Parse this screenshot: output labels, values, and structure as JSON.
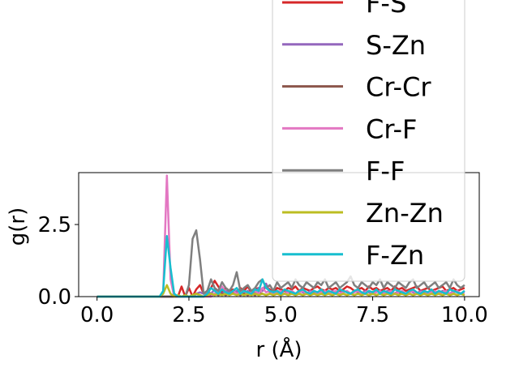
{
  "chart_data": {
    "type": "line",
    "xlabel": "r (Å)",
    "ylabel": "g(r)",
    "xlim": [
      -0.5,
      10.4
    ],
    "ylim": [
      0,
      4.3
    ],
    "x_ticks": [
      "0.0",
      "2.5",
      "5.0",
      "7.5",
      "10.0"
    ],
    "x_tick_values": [
      0,
      2.5,
      5,
      7.5,
      10
    ],
    "y_ticks": [
      "0.0",
      "2.5"
    ],
    "y_tick_values": [
      0,
      2.5
    ],
    "grid": false,
    "legend_placement": "upper right (extends above plot)",
    "x": [
      0,
      0.1,
      0.2,
      0.3,
      0.4,
      0.5,
      0.6,
      0.7,
      0.8,
      0.9,
      1.0,
      1.1,
      1.2,
      1.3,
      1.4,
      1.5,
      1.6,
      1.7,
      1.8,
      1.9,
      2.0,
      2.1,
      2.2,
      2.3,
      2.4,
      2.5,
      2.6,
      2.7,
      2.8,
      2.9,
      3.0,
      3.1,
      3.2,
      3.3,
      3.4,
      3.5,
      3.6,
      3.7,
      3.8,
      3.9,
      4.0,
      4.1,
      4.2,
      4.3,
      4.4,
      4.5,
      4.6,
      4.7,
      4.8,
      4.9,
      5.0,
      5.1,
      5.2,
      5.3,
      5.4,
      5.5,
      5.6,
      5.7,
      5.8,
      5.9,
      6.0,
      6.1,
      6.2,
      6.3,
      6.4,
      6.5,
      6.6,
      6.7,
      6.8,
      6.9,
      7.0,
      7.1,
      7.2,
      7.3,
      7.4,
      7.5,
      7.6,
      7.7,
      7.8,
      7.9,
      8.0,
      8.1,
      8.2,
      8.3,
      8.4,
      8.5,
      8.6,
      8.7,
      8.8,
      8.9,
      9.0,
      9.1,
      9.2,
      9.3,
      9.4,
      9.5,
      9.6,
      9.7,
      9.8,
      9.9,
      10.0
    ],
    "series": [
      {
        "name": "F-S",
        "color": "#d62728",
        "values": [
          0,
          0,
          0,
          0,
          0,
          0,
          0,
          0,
          0,
          0,
          0,
          0,
          0,
          0,
          0,
          0,
          0,
          0,
          0,
          0,
          0,
          0,
          0,
          0.35,
          0,
          0.3,
          0,
          0.25,
          0.4,
          0.1,
          0.2,
          0.3,
          0.55,
          0.35,
          0.15,
          0.3,
          0.2,
          0.25,
          0.1,
          0.3,
          0.2,
          0.35,
          0.15,
          0.25,
          0.3,
          0.2,
          0.35,
          0.25,
          0.15,
          0.3,
          0.25,
          0.2,
          0.3,
          0.25,
          0.35,
          0.2,
          0.3,
          0.25,
          0.2,
          0.3,
          0.35,
          0.25,
          0.2,
          0.3,
          0.25,
          0.3,
          0.2,
          0.25,
          0.35,
          0.3,
          0.2,
          0.25,
          0.3,
          0.2,
          0.35,
          0.25,
          0.3,
          0.2,
          0.25,
          0.3,
          0.2,
          0.35,
          0.25,
          0.3,
          0.2,
          0.25,
          0.3,
          0.35,
          0.2,
          0.25,
          0.3,
          0.2,
          0.25,
          0.3,
          0.35,
          0.2,
          0.25,
          0.3,
          0.2,
          0.25,
          0.3
        ]
      },
      {
        "name": "S-Zn",
        "color": "#9467bd",
        "values": [
          0,
          0,
          0,
          0,
          0,
          0,
          0,
          0,
          0,
          0,
          0,
          0,
          0,
          0,
          0,
          0,
          0,
          0,
          0,
          0,
          0,
          0,
          0,
          0,
          0,
          0,
          0,
          0.1,
          0.15,
          0.1,
          0.2,
          0.1,
          0.25,
          0.15,
          0.1,
          0.2,
          0.15,
          0.1,
          0.2,
          0.15,
          0.1,
          0.2,
          0.1,
          0.15,
          0.3,
          0.2,
          0.45,
          0.15,
          0.1,
          0.2,
          0.15,
          0.1,
          0.2,
          0.15,
          0.1,
          0.2,
          0.15,
          0.1,
          0.2,
          0.15,
          0.1,
          0.2,
          0.15,
          0.1,
          0.2,
          0.15,
          0.1,
          0.2,
          0.15,
          0.1,
          0.2,
          0.15,
          0.1,
          0.2,
          0.15,
          0.1,
          0.2,
          0.15,
          0.1,
          0.2,
          0.15,
          0.1,
          0.2,
          0.15,
          0.1,
          0.2,
          0.15,
          0.1,
          0.2,
          0.15,
          0.1,
          0.2,
          0.15,
          0.1,
          0.2,
          0.15,
          0.1,
          0.2,
          0.15,
          0.1,
          0.2
        ]
      },
      {
        "name": "Cr-Cr",
        "color": "#8c564b",
        "values": [
          0,
          0,
          0,
          0,
          0,
          0,
          0,
          0,
          0,
          0,
          0,
          0,
          0,
          0,
          0,
          0,
          0,
          0,
          0,
          0,
          0,
          0,
          0,
          0,
          0,
          0,
          0,
          0,
          0,
          0,
          0.1,
          0.05,
          0.1,
          0.05,
          0.1,
          0.05,
          0.1,
          0.15,
          0.1,
          0.05,
          0.1,
          0.05,
          0.1,
          0.05,
          0.15,
          0.1,
          0.05,
          0.1,
          0.05,
          0.1,
          0.05,
          0.1,
          0.15,
          0.1,
          0.05,
          0.1,
          0.05,
          0.1,
          0.05,
          0.1,
          0.05,
          0.1,
          0.15,
          0.1,
          0.05,
          0.1,
          0.05,
          0.1,
          0.05,
          0.1,
          0.05,
          0.1,
          0.15,
          0.1,
          0.05,
          0.1,
          0.05,
          0.1,
          0.05,
          0.1,
          0.05,
          0.1,
          0.15,
          0.1,
          0.05,
          0.1,
          0.05,
          0.1,
          0.05,
          0.1,
          0.05,
          0.1,
          0.15,
          0.1,
          0.05,
          0.1,
          0.05,
          0.1,
          0.05,
          0.1,
          0.05
        ]
      },
      {
        "name": "Cr-F",
        "color": "#e377c2",
        "values": [
          0,
          0,
          0,
          0,
          0,
          0,
          0,
          0,
          0,
          0,
          0,
          0,
          0,
          0,
          0,
          0,
          0,
          0,
          0.1,
          4.2,
          0.6,
          0,
          0,
          0,
          0,
          0,
          0,
          0,
          0,
          0,
          0,
          0,
          0.1,
          0.2,
          0.35,
          0.15,
          0.1,
          0.2,
          0.1,
          0.15,
          0.2,
          0.1,
          0.15,
          0.2,
          0.1,
          0.3,
          0.15,
          0.2,
          0.1,
          0.15,
          0.2,
          0.1,
          0.15,
          0.2,
          0.1,
          0.15,
          0.2,
          0.1,
          0.15,
          0.2,
          0.1,
          0.15,
          0.2,
          0.1,
          0.15,
          0.2,
          0.1,
          0.15,
          0.2,
          0.1,
          0.15,
          0.2,
          0.1,
          0.15,
          0.2,
          0.1,
          0.15,
          0.2,
          0.1,
          0.15,
          0.2,
          0.1,
          0.15,
          0.2,
          0.1,
          0.15,
          0.2,
          0.1,
          0.15,
          0.2,
          0.1,
          0.15,
          0.2,
          0.1,
          0.15,
          0.2,
          0.1,
          0.15,
          0.2,
          0.1,
          0.15
        ]
      },
      {
        "name": "F-F",
        "color": "#7f7f7f",
        "values": [
          0,
          0,
          0,
          0,
          0,
          0,
          0,
          0,
          0,
          0,
          0,
          0,
          0,
          0,
          0,
          0,
          0,
          0,
          0,
          0,
          0,
          0,
          0,
          0,
          0,
          0.4,
          2.0,
          2.3,
          1.3,
          0.1,
          0.2,
          0.6,
          0.3,
          0.2,
          0.5,
          0.3,
          0.2,
          0.4,
          0.85,
          0.2,
          0.3,
          0.4,
          0.2,
          0.3,
          0.5,
          0.6,
          0.3,
          0.4,
          0.2,
          0.5,
          0.3,
          0.4,
          0.5,
          0.3,
          0.6,
          0.4,
          0.3,
          0.5,
          0.4,
          0.3,
          0.5,
          0.4,
          0.6,
          0.3,
          0.4,
          0.5,
          0.3,
          0.4,
          0.5,
          0.7,
          0.4,
          0.3,
          0.5,
          0.4,
          0.3,
          0.5,
          0.4,
          0.6,
          0.3,
          0.5,
          0.4,
          0.3,
          0.5,
          0.4,
          0.3,
          0.5,
          0.6,
          0.3,
          0.4,
          0.5,
          0.3,
          0.4,
          0.5,
          0.3,
          0.4,
          0.5,
          0.3,
          0.6,
          0.4,
          0.3,
          0.4
        ]
      },
      {
        "name": "Zn-Zn",
        "color": "#bcbd22",
        "values": [
          0,
          0,
          0,
          0,
          0,
          0,
          0,
          0,
          0,
          0,
          0,
          0,
          0,
          0,
          0,
          0,
          0,
          0,
          0.1,
          0.4,
          0.1,
          0,
          0.05,
          0,
          0.05,
          0,
          0.05,
          0.1,
          0.05,
          0,
          0.05,
          0.1,
          0.05,
          0.1,
          0.05,
          0.1,
          0.05,
          0.1,
          0.05,
          0.1,
          0.05,
          0.1,
          0.05,
          0.1,
          0.05,
          0.1,
          0.05,
          0.1,
          0.05,
          0.1,
          0.05,
          0.1,
          0.05,
          0.1,
          0.05,
          0.1,
          0.05,
          0.1,
          0.05,
          0.1,
          0.05,
          0.1,
          0.05,
          0.1,
          0.05,
          0.1,
          0.05,
          0.1,
          0.05,
          0.1,
          0.05,
          0.1,
          0.05,
          0.1,
          0.05,
          0.1,
          0.05,
          0.1,
          0.05,
          0.1,
          0.05,
          0.1,
          0.05,
          0.1,
          0.05,
          0.1,
          0.05,
          0.1,
          0.05,
          0.1,
          0.05,
          0.1,
          0.05,
          0.1,
          0.05,
          0.1,
          0.05,
          0.1,
          0.05,
          0.1,
          0.05
        ]
      },
      {
        "name": "F-Zn",
        "color": "#17becf",
        "values": [
          0,
          0,
          0,
          0,
          0,
          0,
          0,
          0,
          0,
          0,
          0,
          0,
          0,
          0,
          0,
          0,
          0,
          0,
          0.2,
          2.1,
          1.0,
          0.1,
          0,
          0,
          0,
          0,
          0,
          0,
          0,
          0,
          0.1,
          0.3,
          0.2,
          0.1,
          0.25,
          0.15,
          0.1,
          0.2,
          0.3,
          0.1,
          0.2,
          0.15,
          0.1,
          0.25,
          0.2,
          0.6,
          0.3,
          0.2,
          0.15,
          0.2,
          0.1,
          0.25,
          0.2,
          0.15,
          0.1,
          0.2,
          0.25,
          0.15,
          0.1,
          0.2,
          0.15,
          0.25,
          0.1,
          0.2,
          0.15,
          0.1,
          0.25,
          0.2,
          0.15,
          0.1,
          0.2,
          0.25,
          0.15,
          0.1,
          0.2,
          0.15,
          0.25,
          0.1,
          0.2,
          0.15,
          0.1,
          0.25,
          0.2,
          0.15,
          0.1,
          0.2,
          0.25,
          0.15,
          0.1,
          0.2,
          0.15,
          0.25,
          0.1,
          0.2,
          0.15,
          0.1,
          0.25,
          0.2,
          0.15,
          0.1,
          0.2
        ]
      }
    ]
  }
}
